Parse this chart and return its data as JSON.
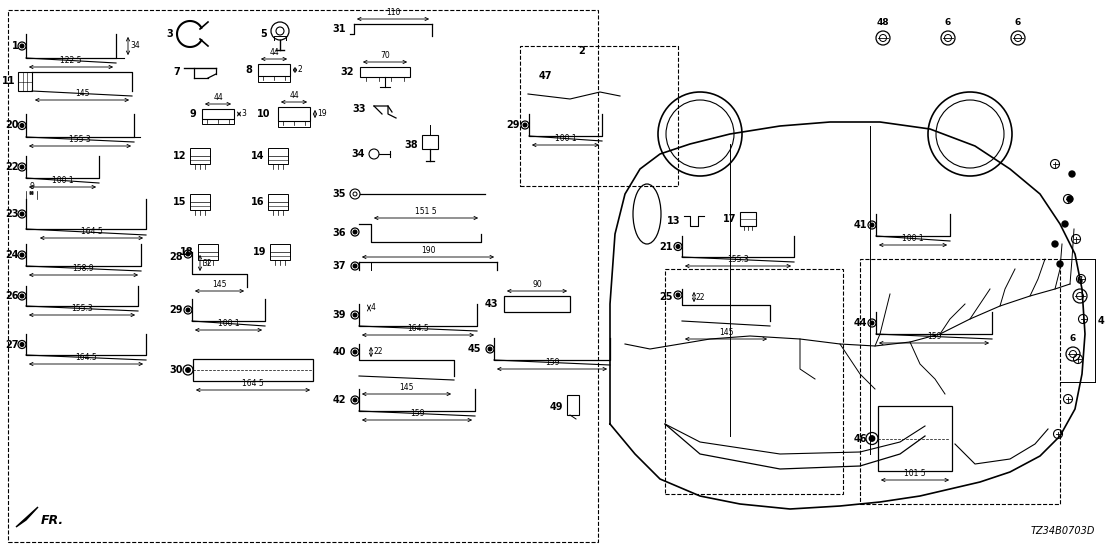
{
  "bg_color": "#ffffff",
  "line_color": "#000000",
  "diagram_code": "TZ34B0703D",
  "fig_width": 11.08,
  "fig_height": 5.54,
  "dpi": 100
}
